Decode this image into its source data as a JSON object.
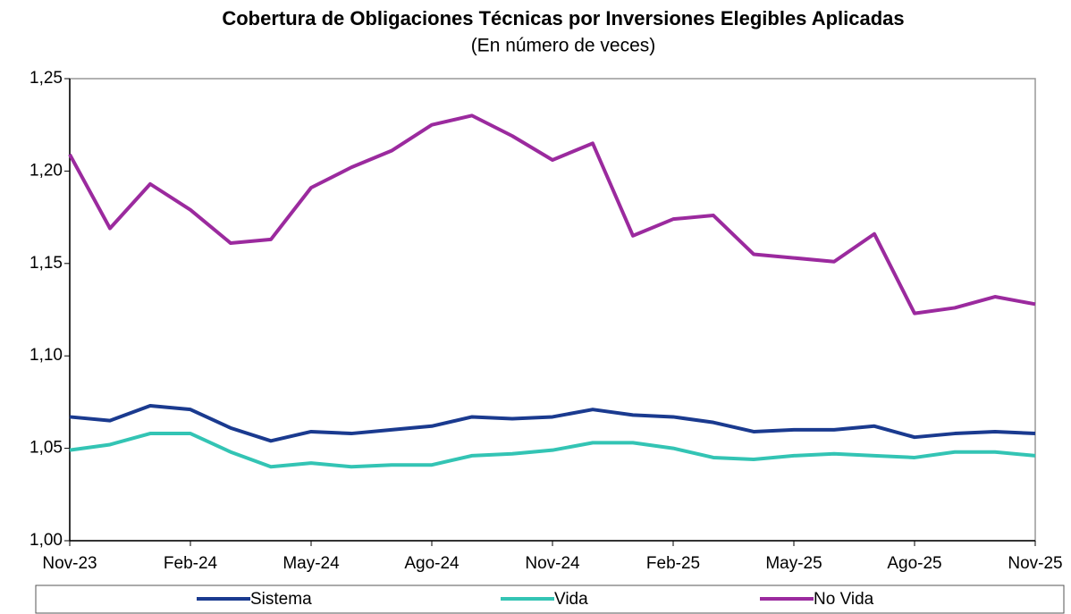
{
  "chart_data": {
    "type": "line",
    "title": "Cobertura de Obligaciones Técnicas por Inversiones Elegibles Aplicadas",
    "subtitle": "(En número de veces)",
    "categories": [
      "Nov-23",
      null,
      null,
      "Feb-24",
      null,
      null,
      "May-24",
      null,
      null,
      "Ago-24",
      null,
      null,
      "Nov-24",
      null,
      null,
      "Feb-25",
      null,
      null,
      "May-25",
      null,
      null,
      "Ago-25",
      null,
      null,
      "Nov-25"
    ],
    "series": [
      {
        "name": "Sistema",
        "color": "#1a3a8f",
        "values": [
          1.067,
          1.065,
          1.073,
          1.071,
          1.061,
          1.054,
          1.059,
          1.058,
          1.06,
          1.062,
          1.067,
          1.066,
          1.067,
          1.071,
          1.068,
          1.067,
          1.064,
          1.059,
          1.06,
          1.06,
          1.062,
          1.056,
          1.058,
          1.059,
          1.058
        ]
      },
      {
        "name": "Vida",
        "color": "#33c4b4",
        "values": [
          1.049,
          1.052,
          1.058,
          1.058,
          1.048,
          1.04,
          1.042,
          1.04,
          1.041,
          1.041,
          1.046,
          1.047,
          1.049,
          1.053,
          1.053,
          1.05,
          1.045,
          1.044,
          1.046,
          1.047,
          1.046,
          1.045,
          1.048,
          1.048,
          1.046
        ]
      },
      {
        "name": "No Vida",
        "color": "#9b2a9e",
        "values": [
          1.209,
          1.169,
          1.193,
          1.179,
          1.161,
          1.163,
          1.191,
          1.202,
          1.211,
          1.225,
          1.23,
          1.219,
          1.206,
          1.215,
          1.165,
          1.174,
          1.176,
          1.155,
          1.153,
          1.151,
          1.166,
          1.123,
          1.126,
          1.132,
          1.128
        ]
      }
    ],
    "ylim": [
      1.0,
      1.25
    ],
    "yticks": [
      {
        "value": 1.0,
        "label": "1,00"
      },
      {
        "value": 1.05,
        "label": "1,05"
      },
      {
        "value": 1.1,
        "label": "1,10"
      },
      {
        "value": 1.15,
        "label": "1,15"
      },
      {
        "value": 1.2,
        "label": "1,20"
      },
      {
        "value": 1.25,
        "label": "1,25"
      }
    ],
    "grid": false,
    "legend": "bottom"
  }
}
